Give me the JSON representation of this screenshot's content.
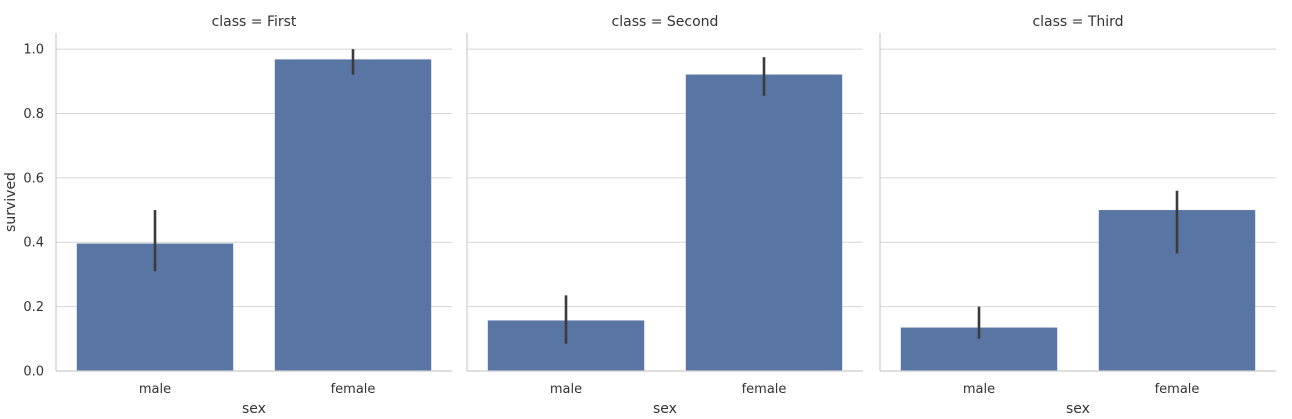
{
  "chart_data": {
    "type": "bar",
    "ylabel": "survived",
    "xlabel": "sex",
    "ylim": [
      0,
      1.05
    ],
    "yticks": [
      "0.0",
      "0.2",
      "0.4",
      "0.6",
      "0.8",
      "1.0"
    ],
    "categories": [
      "male",
      "female"
    ],
    "grid": true,
    "bar_color": "#5875a4",
    "errorbar_color": "#3b3b3b",
    "panels": [
      {
        "title": "class = First",
        "values": [
          0.396,
          0.968
        ],
        "ci": [
          [
            0.31,
            0.5
          ],
          [
            0.92,
            1.0
          ]
        ]
      },
      {
        "title": "class = Second",
        "values": [
          0.157,
          0.921
        ],
        "ci": [
          [
            0.085,
            0.235
          ],
          [
            0.855,
            0.975
          ]
        ]
      },
      {
        "title": "class = Third",
        "values": [
          0.135,
          0.5
        ],
        "ci": [
          [
            0.1,
            0.2
          ],
          [
            0.365,
            0.56
          ]
        ]
      }
    ]
  }
}
